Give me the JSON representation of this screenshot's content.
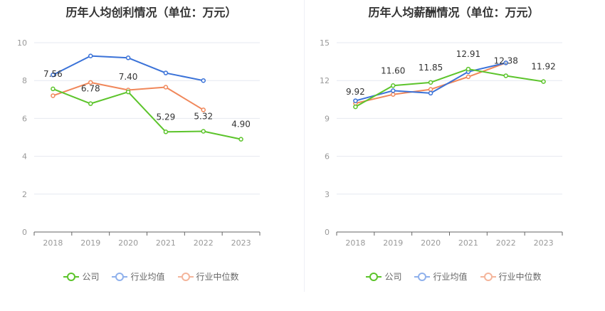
{
  "legend": [
    {
      "name": "公司",
      "color": "#5cc42b"
    },
    {
      "name": "行业均值",
      "color": "#8fb1ec"
    },
    {
      "name": "行业中位数",
      "color": "#f4b59b"
    }
  ],
  "chart_data": [
    {
      "type": "line",
      "title": "历年人均创利情况（单位：万元）",
      "categories": [
        "2018",
        "2019",
        "2020",
        "2021",
        "2022",
        "2023"
      ],
      "ylim": [
        0,
        10
      ],
      "yticks": [
        "0",
        "2",
        "4",
        "6",
        "8",
        "10"
      ],
      "series": [
        {
          "name": "公司",
          "color": "#5cc42b",
          "values": [
            7.56,
            6.78,
            7.4,
            5.29,
            5.32,
            4.9
          ],
          "labels": [
            "7.56",
            "6.78",
            "7.40",
            "5.29",
            "5.32",
            "4.90"
          ]
        },
        {
          "name": "行业均值",
          "color": "#3a72d8",
          "values": [
            8.3,
            9.3,
            9.2,
            8.4,
            8.0,
            null
          ]
        },
        {
          "name": "行业中位数",
          "color": "#f0875a",
          "values": [
            7.2,
            7.9,
            7.5,
            7.65,
            6.45,
            null
          ]
        }
      ]
    },
    {
      "type": "line",
      "title": "历年人均薪酬情况（单位：万元）",
      "categories": [
        "2018",
        "2019",
        "2020",
        "2021",
        "2022",
        "2023"
      ],
      "ylim": [
        0,
        15
      ],
      "yticks": [
        "0",
        "3",
        "6",
        "9",
        "12",
        "15"
      ],
      "series": [
        {
          "name": "公司",
          "color": "#5cc42b",
          "values": [
            9.92,
            11.6,
            11.85,
            12.91,
            12.38,
            11.92
          ],
          "labels": [
            "9.92",
            "11.60",
            "11.85",
            "12.91",
            "12.38",
            "11.92"
          ]
        },
        {
          "name": "行业均值",
          "color": "#3a72d8",
          "values": [
            10.4,
            11.2,
            11.0,
            12.7,
            13.4,
            null
          ]
        },
        {
          "name": "行业中位数",
          "color": "#f0875a",
          "values": [
            10.2,
            10.9,
            11.3,
            12.3,
            13.4,
            null
          ]
        }
      ]
    }
  ]
}
